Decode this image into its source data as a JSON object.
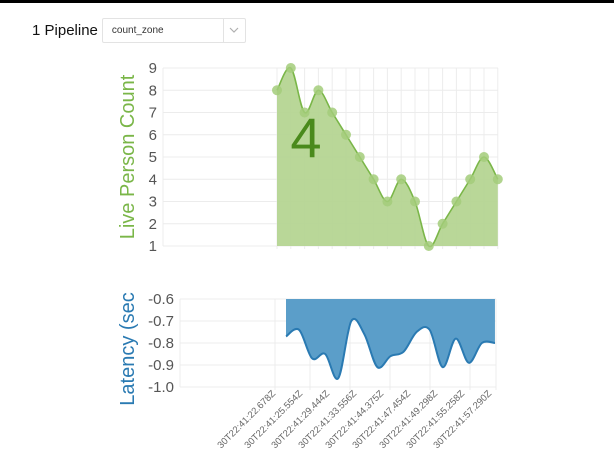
{
  "header": {
    "pipeline_label": "1 Pipeline",
    "pipeline_select": {
      "value": "count_zone",
      "icon": "chevron-down-icon"
    }
  },
  "colors": {
    "count_fill": "#b5d592",
    "count_line": "#7ab648",
    "count_point": "#a3cc7a",
    "count_label": "#7ab648",
    "big_number": "#4a8a1c",
    "latency_fill": "#5b9ec9",
    "latency_line": "#2a7ab2",
    "latency_label": "#2a7ab2",
    "grid": "#ececec",
    "tick_text": "#555555"
  },
  "chart_data": [
    {
      "type": "area",
      "title": "",
      "ylabel": "Live Person Count",
      "xlabel": "",
      "ylim": [
        1,
        9
      ],
      "yticks": [
        1,
        2,
        3,
        4,
        5,
        6,
        7,
        8,
        9
      ],
      "grid": true,
      "current_value_overlay": "4",
      "values": [
        8,
        9,
        7,
        8,
        7,
        6,
        5,
        4,
        3,
        4,
        3,
        1,
        2,
        3,
        4,
        5,
        4
      ]
    },
    {
      "type": "area",
      "title": "",
      "ylabel": "Latency (sec",
      "xlabel": "",
      "ylim": [
        -1.0,
        -0.6
      ],
      "yticks": [
        "-0.6",
        "-0.7",
        "-0.8",
        "-0.9",
        "-1.0"
      ],
      "grid": true,
      "fill_to": "top",
      "values": [
        -0.77,
        -0.74,
        -0.87,
        -0.85,
        -0.96,
        -0.7,
        -0.76,
        -0.91,
        -0.86,
        -0.84,
        -0.75,
        -0.74,
        -0.91,
        -0.78,
        -0.89,
        -0.8,
        -0.8
      ],
      "xtick_labels": [
        "30T22:41:22.678Z",
        "30T22:41:25.554Z",
        "30T22:41:29.444Z",
        "30T22:41:33.556Z",
        "30T22:41:44.375Z",
        "30T22:41:47.454Z",
        "30T22:41:49.298Z",
        "30T22:41:55.258Z",
        "30T22:41:57.290Z"
      ]
    }
  ]
}
